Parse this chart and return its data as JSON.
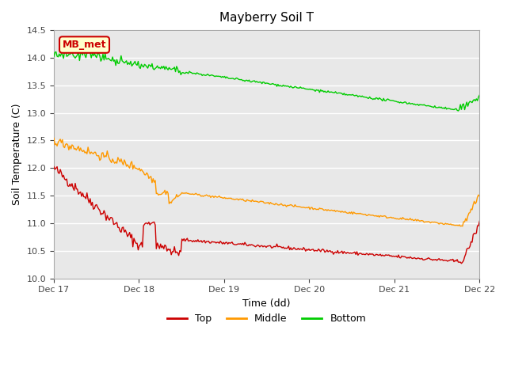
{
  "title": "Mayberry Soil T",
  "xlabel": "Time (dd)",
  "ylabel": "Soil Temperature (C)",
  "ylim": [
    10.0,
    14.5
  ],
  "xlim": [
    0.0,
    5.0
  ],
  "yticks": [
    10.0,
    10.5,
    11.0,
    11.5,
    12.0,
    12.5,
    13.0,
    13.5,
    14.0,
    14.5
  ],
  "xtick_positions": [
    0,
    1,
    2,
    3,
    4,
    5
  ],
  "xtick_labels": [
    "Dec 17",
    "Dec 18",
    "Dec 19",
    "Dec 20",
    "Dec 21",
    "Dec 22"
  ],
  "bg_color": "#e8e8e8",
  "plot_bg_color": "#e8e8e8",
  "grid_color": "white",
  "top_color": "#cc0000",
  "middle_color": "#ff9900",
  "bottom_color": "#00cc00",
  "annotation_text": "MB_met",
  "annotation_bg": "#ffffcc",
  "annotation_border": "#cc0000",
  "legend_items": [
    "Top",
    "Middle",
    "Bottom"
  ]
}
